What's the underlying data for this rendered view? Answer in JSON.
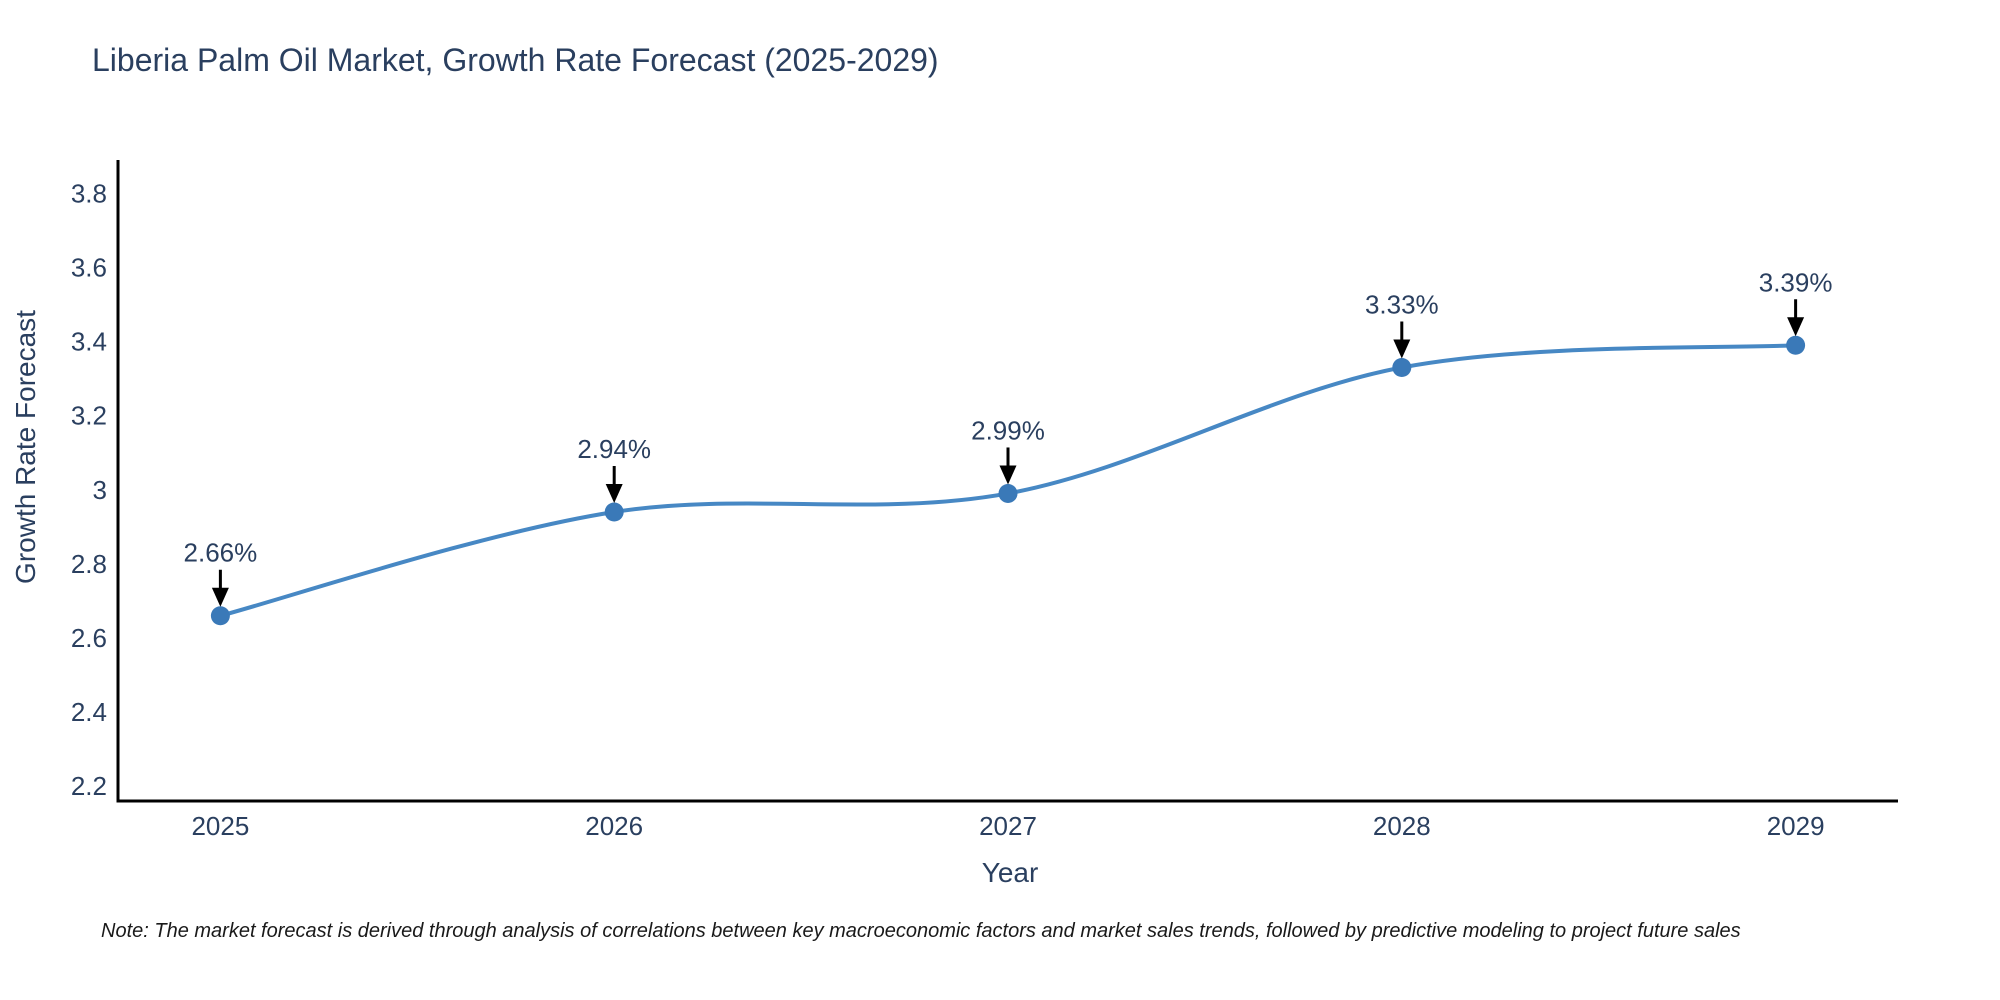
{
  "chart_data": {
    "type": "line",
    "title": "Liberia Palm Oil Market, Growth Rate Forecast (2025-2029)",
    "xlabel": "Year",
    "ylabel": "Growth Rate Forecast",
    "x": [
      2025,
      2026,
      2027,
      2028,
      2029
    ],
    "values": [
      2.66,
      2.94,
      2.99,
      3.33,
      3.39
    ],
    "point_labels": [
      "2.66%",
      "2.94%",
      "2.99%",
      "3.33%",
      "3.39%"
    ],
    "xtick_labels": [
      "2025",
      "2026",
      "2027",
      "2028",
      "2029"
    ],
    "yticks": [
      2.2,
      2.4,
      2.6,
      2.8,
      3.0,
      3.2,
      3.4,
      3.6,
      3.8
    ],
    "ytick_labels": [
      "2.2",
      "2.4",
      "2.6",
      "2.8",
      "3",
      "3.2",
      "3.4",
      "3.6",
      "3.8"
    ],
    "xlim": [
      2024.74,
      2029.26
    ],
    "ylim": [
      2.16,
      3.89
    ],
    "grid": false,
    "legend": false,
    "line_shape": "spline",
    "colors": {
      "line": "#4788c4",
      "marker": "#3a79b8",
      "axis": "#000000",
      "text": "#2a3f5f",
      "annotation_text": "#2a3f5f",
      "annotation_arrow": "#000000",
      "background": "#ffffff"
    }
  },
  "footnote": {
    "text": "Note: The market forecast is derived through analysis of correlations between key macroeconomic factors and market sales trends, followed by predictive modeling to project future sales"
  }
}
